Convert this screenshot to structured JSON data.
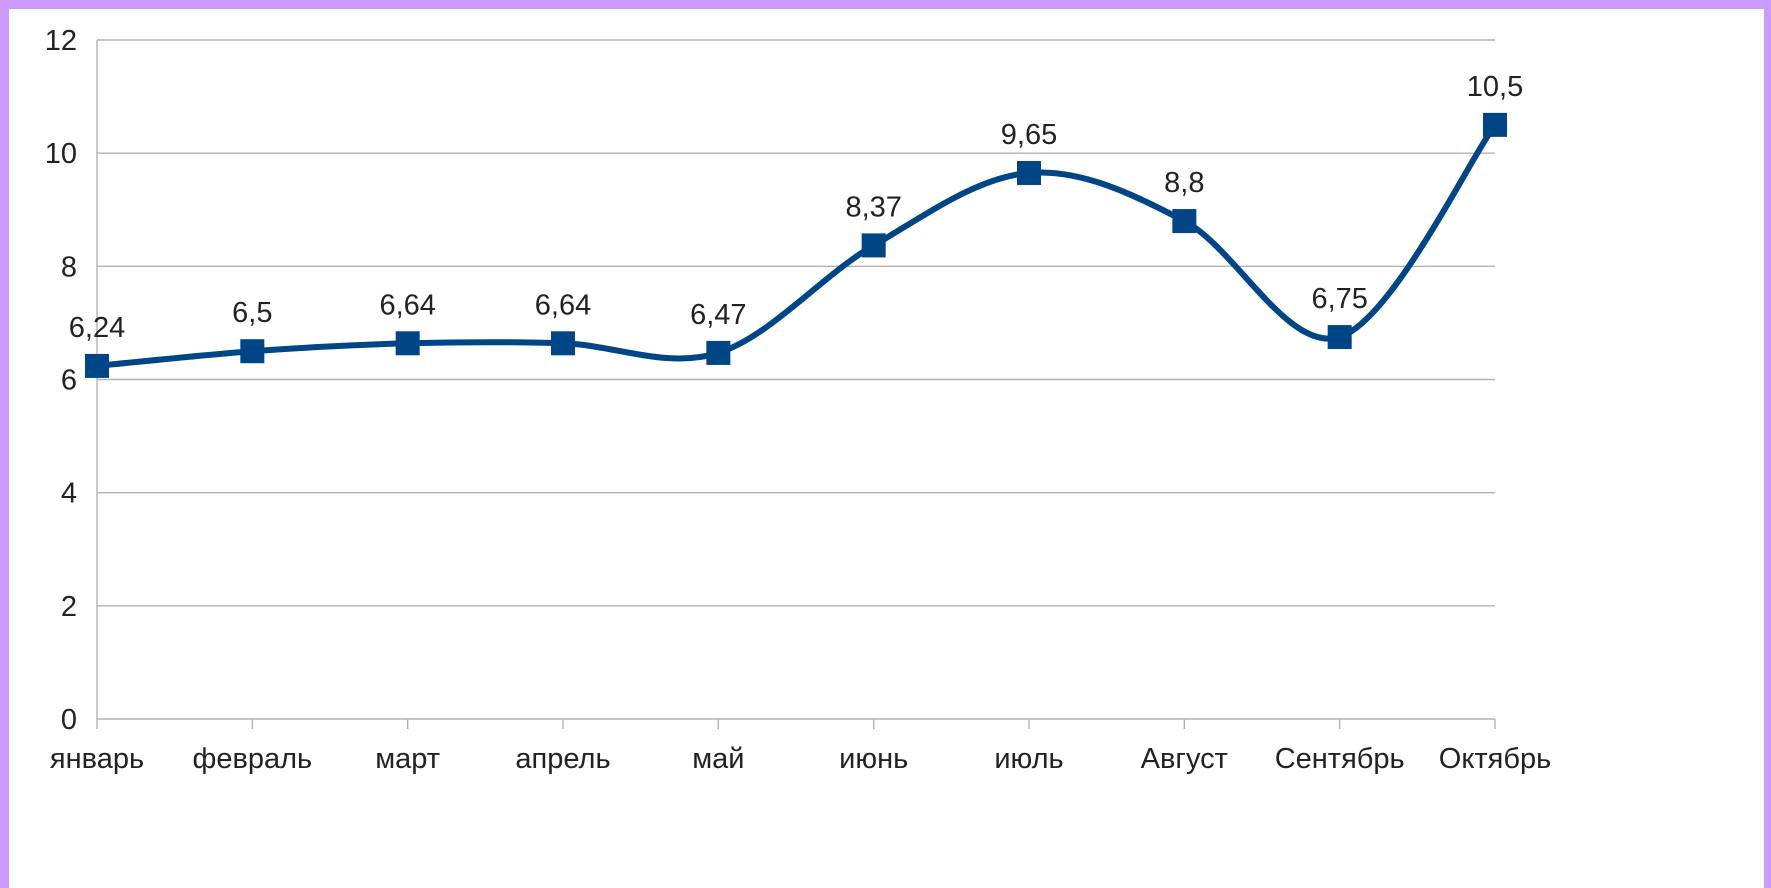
{
  "theme": {
    "frame_color": "#cc99ff",
    "series_color": "#004586",
    "grid_color": "#b3b3b3"
  },
  "chart_data": {
    "type": "line",
    "smooth": true,
    "marker": "square",
    "title": "",
    "xlabel": "",
    "ylabel": "",
    "ylim": [
      0,
      12
    ],
    "yticks": [
      0,
      2,
      4,
      6,
      8,
      10,
      12
    ],
    "grid": true,
    "legend": "none",
    "categories": [
      "январь",
      "февраль",
      "март",
      "апрель",
      "май",
      "июнь",
      "июль",
      "Август",
      "Сентябрь",
      "Октябрь"
    ],
    "series": [
      {
        "values": [
          6.24,
          6.5,
          6.64,
          6.64,
          6.47,
          8.37,
          9.65,
          8.8,
          6.75,
          10.5
        ],
        "labels": [
          "6,24",
          "6,5",
          "6,64",
          "6,64",
          "6,47",
          "8,37",
          "9,65",
          "8,8",
          "6,75",
          "10,5"
        ]
      }
    ]
  }
}
